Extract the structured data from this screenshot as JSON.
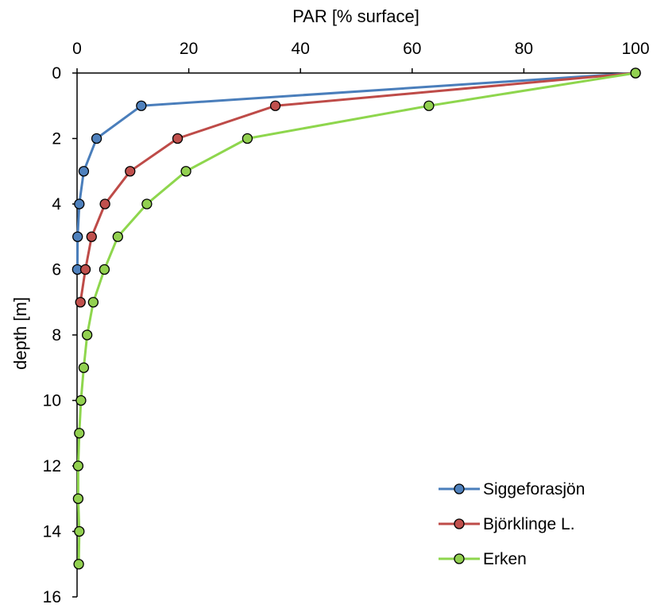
{
  "chart_data": {
    "type": "line",
    "title": "",
    "xlabel": "PAR [% surface]",
    "ylabel": "depth [m]",
    "xlim": [
      0,
      100
    ],
    "ylim": [
      16,
      0
    ],
    "x_axis_position": "top",
    "y_axis_reversed": true,
    "x_ticks": [
      0,
      20,
      40,
      60,
      80,
      100
    ],
    "y_ticks": [
      0,
      2,
      4,
      6,
      8,
      10,
      12,
      14,
      16
    ],
    "grid": false,
    "legend_position": "bottom-right",
    "series": [
      {
        "name": "Siggeforasjön",
        "color": "#4a7ebb",
        "marker_color": "#4f81bd",
        "points": [
          {
            "x": 100,
            "y": 0
          },
          {
            "x": 11.5,
            "y": 1
          },
          {
            "x": 3.5,
            "y": 2
          },
          {
            "x": 1.2,
            "y": 3
          },
          {
            "x": 0.4,
            "y": 4
          },
          {
            "x": 0.1,
            "y": 5
          },
          {
            "x": 0.05,
            "y": 6
          }
        ]
      },
      {
        "name": "Björklinge L.",
        "color": "#be4b48",
        "marker_color": "#c0504d",
        "points": [
          {
            "x": 100,
            "y": 0
          },
          {
            "x": 35.5,
            "y": 1
          },
          {
            "x": 18,
            "y": 2
          },
          {
            "x": 9.5,
            "y": 3
          },
          {
            "x": 5,
            "y": 4
          },
          {
            "x": 2.6,
            "y": 5
          },
          {
            "x": 1.5,
            "y": 6
          },
          {
            "x": 0.6,
            "y": 7
          }
        ]
      },
      {
        "name": "Erken",
        "color": "#8ed64d",
        "marker_color": "#92d050",
        "points": [
          {
            "x": 100,
            "y": 0
          },
          {
            "x": 63,
            "y": 1
          },
          {
            "x": 30.5,
            "y": 2
          },
          {
            "x": 19.5,
            "y": 3
          },
          {
            "x": 12.5,
            "y": 4
          },
          {
            "x": 7.3,
            "y": 5
          },
          {
            "x": 4.9,
            "y": 6
          },
          {
            "x": 2.9,
            "y": 7
          },
          {
            "x": 1.8,
            "y": 8
          },
          {
            "x": 1.2,
            "y": 9
          },
          {
            "x": 0.7,
            "y": 10
          },
          {
            "x": 0.4,
            "y": 11
          },
          {
            "x": 0.2,
            "y": 12
          },
          {
            "x": 0.2,
            "y": 13
          },
          {
            "x": 0.4,
            "y": 14
          },
          {
            "x": 0.3,
            "y": 15
          }
        ]
      }
    ]
  }
}
